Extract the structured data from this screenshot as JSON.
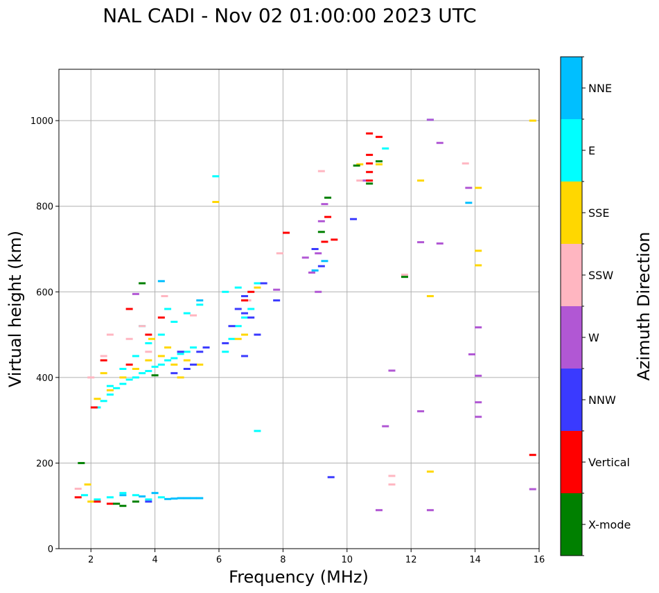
{
  "chart_data": {
    "type": "scatter",
    "title": "NAL CADI - Nov 02 01:00:00 2023 UTC",
    "xlabel": "Frequency (MHz)",
    "ylabel": "Virtual height (km)",
    "xlim": [
      1,
      16
    ],
    "ylim": [
      0,
      1120
    ],
    "xticks": [
      2,
      4,
      6,
      8,
      10,
      12,
      14,
      16
    ],
    "yticks": [
      0,
      200,
      400,
      600,
      800,
      1000
    ],
    "grid": true,
    "colorbar": {
      "label": "Azimuth Direction",
      "categories": [
        {
          "name": "X-mode",
          "color": "#008000"
        },
        {
          "name": "Vertical",
          "color": "#ff0000"
        },
        {
          "name": "NNW",
          "color": "#3a3aff"
        },
        {
          "name": "W",
          "color": "#b157d4"
        },
        {
          "name": "SSW",
          "color": "#ffb6c1"
        },
        {
          "name": "SSE",
          "color": "#ffd700"
        },
        {
          "name": "E",
          "color": "#00ffff"
        },
        {
          "name": "NNE",
          "color": "#00bfff"
        }
      ]
    },
    "series": [
      {
        "name": "NNE",
        "points": [
          [
            4.8,
            118
          ],
          [
            5.0,
            118
          ],
          [
            5.2,
            118
          ],
          [
            5.4,
            118
          ],
          [
            4.6,
            117
          ],
          [
            4.4,
            116
          ],
          [
            3.6,
            122
          ],
          [
            4.0,
            130
          ],
          [
            9.0,
            700
          ],
          [
            9.3,
            672
          ],
          [
            9.0,
            650
          ],
          [
            12.6,
            1002
          ],
          [
            13.8,
            808
          ],
          [
            5.4,
            580
          ],
          [
            4.2,
            625
          ],
          [
            3.0,
            125
          ]
        ]
      },
      {
        "name": "E",
        "points": [
          [
            2.2,
            330
          ],
          [
            2.4,
            345
          ],
          [
            2.6,
            360
          ],
          [
            2.8,
            375
          ],
          [
            3.0,
            385
          ],
          [
            3.2,
            395
          ],
          [
            3.4,
            400
          ],
          [
            3.6,
            410
          ],
          [
            3.8,
            415
          ],
          [
            4.0,
            425
          ],
          [
            4.2,
            430
          ],
          [
            4.4,
            440
          ],
          [
            4.6,
            445
          ],
          [
            4.8,
            455
          ],
          [
            5.0,
            460
          ],
          [
            5.2,
            470
          ],
          [
            2.6,
            380
          ],
          [
            3.0,
            420
          ],
          [
            3.4,
            450
          ],
          [
            3.8,
            480
          ],
          [
            4.2,
            500
          ],
          [
            4.6,
            530
          ],
          [
            5.0,
            550
          ],
          [
            5.4,
            570
          ],
          [
            3.6,
            520
          ],
          [
            4.4,
            560
          ],
          [
            6.2,
            460
          ],
          [
            6.4,
            490
          ],
          [
            6.6,
            520
          ],
          [
            6.8,
            540
          ],
          [
            7.0,
            560
          ],
          [
            6.2,
            600
          ],
          [
            6.6,
            610
          ],
          [
            7.2,
            620
          ],
          [
            2.6,
            120
          ],
          [
            3.0,
            130
          ],
          [
            3.4,
            125
          ],
          [
            3.8,
            115
          ],
          [
            4.2,
            120
          ],
          [
            2.2,
            115
          ],
          [
            1.8,
            125
          ],
          [
            5.9,
            870
          ],
          [
            11.2,
            935
          ],
          [
            7.2,
            275
          ]
        ]
      },
      {
        "name": "SSE",
        "points": [
          [
            2.2,
            350
          ],
          [
            2.6,
            370
          ],
          [
            3.0,
            400
          ],
          [
            3.4,
            420
          ],
          [
            3.8,
            440
          ],
          [
            4.2,
            450
          ],
          [
            4.6,
            430
          ],
          [
            5.0,
            440
          ],
          [
            5.4,
            430
          ],
          [
            4.8,
            400
          ],
          [
            2.4,
            410
          ],
          [
            4.4,
            470
          ],
          [
            6.6,
            490
          ],
          [
            6.8,
            500
          ],
          [
            7.2,
            610
          ],
          [
            1.9,
            150
          ],
          [
            2.0,
            110
          ],
          [
            10.4,
            898
          ],
          [
            11.0,
            898
          ],
          [
            12.3,
            860
          ],
          [
            14.1,
            843
          ],
          [
            14.1,
            696
          ],
          [
            14.1,
            662
          ],
          [
            12.6,
            590
          ],
          [
            12.6,
            180
          ],
          [
            15.8,
            1000
          ],
          [
            5.9,
            810
          ],
          [
            3.9,
            490
          ]
        ]
      },
      {
        "name": "SSW",
        "points": [
          [
            2.4,
            450
          ],
          [
            2.6,
            500
          ],
          [
            3.2,
            490
          ],
          [
            3.8,
            460
          ],
          [
            4.3,
            590
          ],
          [
            2.0,
            400
          ],
          [
            7.9,
            690
          ],
          [
            9.2,
            882
          ],
          [
            10.4,
            860
          ],
          [
            13.7,
            900
          ],
          [
            11.4,
            170
          ],
          [
            11.4,
            150
          ],
          [
            11.8,
            640
          ],
          [
            5.2,
            545
          ],
          [
            3.6,
            520
          ],
          [
            6.9,
            580
          ],
          [
            1.6,
            140
          ]
        ]
      },
      {
        "name": "W",
        "points": [
          [
            8.7,
            680
          ],
          [
            8.9,
            645
          ],
          [
            9.1,
            690
          ],
          [
            9.2,
            765
          ],
          [
            9.3,
            805
          ],
          [
            7.8,
            605
          ],
          [
            12.6,
            1002
          ],
          [
            12.9,
            948
          ],
          [
            12.3,
            716
          ],
          [
            12.9,
            713
          ],
          [
            13.8,
            843
          ],
          [
            14.1,
            517
          ],
          [
            13.9,
            454
          ],
          [
            14.1,
            404
          ],
          [
            14.1,
            342
          ],
          [
            14.1,
            308
          ],
          [
            11.4,
            416
          ],
          [
            11.2,
            286
          ],
          [
            11.0,
            90
          ],
          [
            12.6,
            90
          ],
          [
            15.8,
            139
          ],
          [
            12.3,
            321
          ],
          [
            10.6,
            860
          ],
          [
            3.4,
            595
          ],
          [
            9.1,
            600
          ]
        ]
      },
      {
        "name": "NNW",
        "points": [
          [
            5.2,
            430
          ],
          [
            5.4,
            460
          ],
          [
            5.0,
            420
          ],
          [
            4.6,
            410
          ],
          [
            6.4,
            520
          ],
          [
            6.6,
            560
          ],
          [
            6.8,
            590
          ],
          [
            7.0,
            540
          ],
          [
            7.2,
            500
          ],
          [
            6.2,
            480
          ],
          [
            6.8,
            450
          ],
          [
            7.4,
            620
          ],
          [
            7.8,
            580
          ],
          [
            9.0,
            700
          ],
          [
            9.2,
            660
          ],
          [
            10.2,
            770
          ],
          [
            9.5,
            167
          ],
          [
            4.8,
            460
          ],
          [
            3.8,
            110
          ],
          [
            5.6,
            470
          ],
          [
            6.8,
            550
          ]
        ]
      },
      {
        "name": "Vertical",
        "points": [
          [
            2.1,
            330
          ],
          [
            2.4,
            440
          ],
          [
            3.2,
            430
          ],
          [
            3.8,
            500
          ],
          [
            4.2,
            540
          ],
          [
            3.2,
            560
          ],
          [
            6.8,
            580
          ],
          [
            7.0,
            600
          ],
          [
            8.1,
            738
          ],
          [
            9.4,
            775
          ],
          [
            9.6,
            722
          ],
          [
            10.7,
            970
          ],
          [
            11.0,
            962
          ],
          [
            10.7,
            920
          ],
          [
            10.7,
            900
          ],
          [
            10.7,
            880
          ],
          [
            10.7,
            860
          ],
          [
            9.3,
            717
          ],
          [
            15.8,
            219
          ],
          [
            2.2,
            110
          ],
          [
            2.6,
            105
          ],
          [
            1.6,
            120
          ]
        ]
      },
      {
        "name": "X-mode",
        "points": [
          [
            3.0,
            100
          ],
          [
            3.4,
            110
          ],
          [
            3.6,
            620
          ],
          [
            4.0,
            405
          ],
          [
            9.4,
            820
          ],
          [
            9.2,
            740
          ],
          [
            10.3,
            895
          ],
          [
            10.7,
            853
          ],
          [
            11.8,
            635
          ],
          [
            11.0,
            905
          ],
          [
            1.7,
            200
          ],
          [
            2.8,
            105
          ]
        ]
      }
    ]
  }
}
